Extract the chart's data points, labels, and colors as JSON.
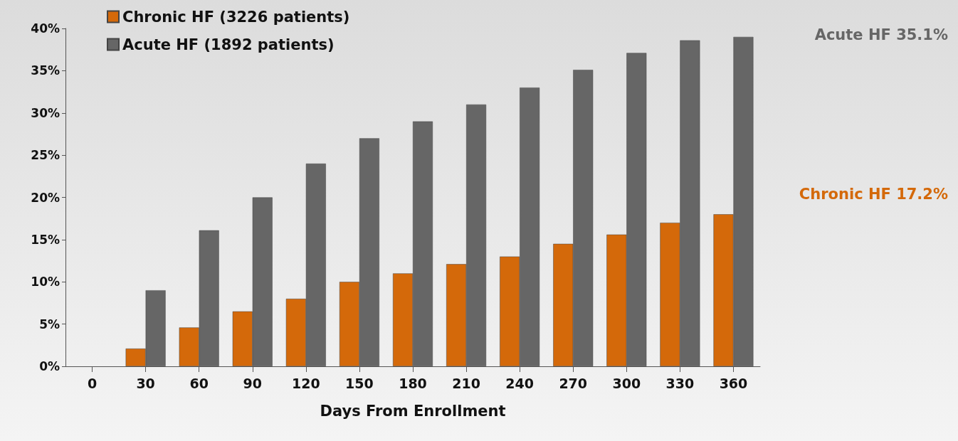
{
  "chart_data": {
    "type": "bar",
    "xlabel": "Days From Enrollment",
    "categories": [
      "0",
      "30",
      "60",
      "90",
      "120",
      "150",
      "180",
      "210",
      "240",
      "270",
      "300",
      "330",
      "360"
    ],
    "series": [
      {
        "name": "Chronic HF (3226 patients)",
        "color": "#d4690a",
        "values": [
          null,
          2.1,
          4.6,
          6.5,
          8.0,
          10.0,
          11.0,
          12.1,
          13.0,
          14.5,
          15.6,
          17.0,
          18.0
        ]
      },
      {
        "name": "Acute HF (1892 patients)",
        "color": "#666666",
        "values": [
          null,
          9.0,
          16.1,
          20.0,
          24.0,
          27.0,
          29.0,
          31.0,
          33.0,
          35.1,
          37.1,
          38.6,
          39.0
        ]
      }
    ],
    "ylim": [
      0,
      40
    ],
    "yticks": [
      {
        "value": 0,
        "label": "0%"
      },
      {
        "value": 5,
        "label": "5%"
      },
      {
        "value": 10,
        "label": "10%"
      },
      {
        "value": 15,
        "label": "15%"
      },
      {
        "value": 20,
        "label": "20%"
      },
      {
        "value": 25,
        "label": "25%"
      },
      {
        "value": 30,
        "label": "30%"
      },
      {
        "value": 35,
        "label": "35%"
      },
      {
        "value": 40,
        "label": "40%"
      }
    ],
    "annotations": [
      "Acute HF 35.1%",
      "Chronic HF 17.2%"
    ],
    "legend": "top left",
    "grid": false
  }
}
